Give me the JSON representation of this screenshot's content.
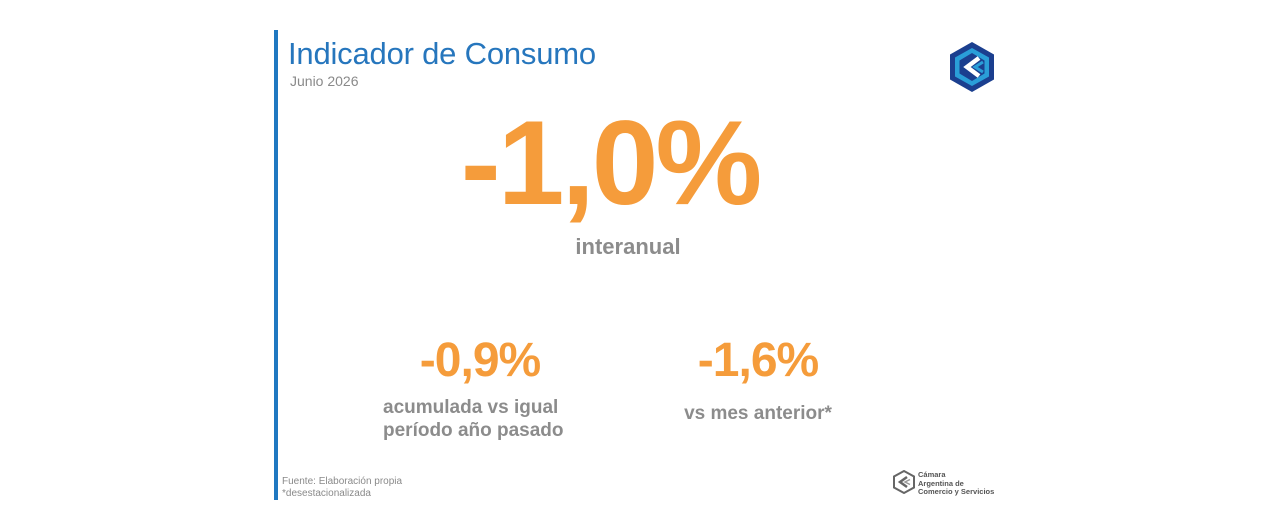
{
  "header": {
    "title": "Indicador de Consumo",
    "subtitle": "Junio 2026"
  },
  "main_kpi": {
    "value": "-1,0%",
    "label": "interanual"
  },
  "kpis": [
    {
      "value": "-0,9%",
      "label": "acumulada vs igual período año pasado"
    },
    {
      "value": "-1,6%",
      "label": "vs mes anterior*"
    }
  ],
  "footer": {
    "source": "Fuente: Elaboración propia",
    "note": "*desestacionalizada",
    "org_name_line1": "Cámara",
    "org_name_line2": "Argentina de",
    "org_name_line3": "Comercio y Servicios"
  },
  "logos": {
    "top": "cac-hexagon-logo-icon",
    "bottom": "cac-hexagon-logo-small-icon"
  },
  "colors": {
    "accent_blue": "#1f78c1",
    "title_blue": "#2676bd",
    "kpi_orange": "#f59c3b",
    "label_gray": "#8c8c8c",
    "logo_dark_blue": "#1b3f8f",
    "logo_light_blue": "#2a9ed8"
  }
}
